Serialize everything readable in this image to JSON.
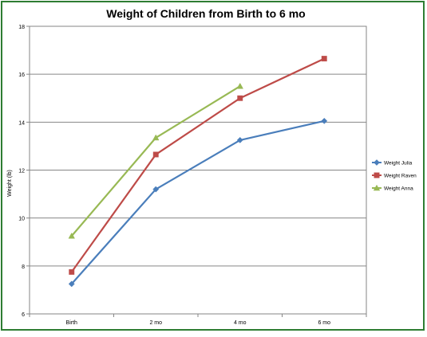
{
  "chart_data": {
    "type": "line",
    "title": "Weight of Children from Birth to 6 mo",
    "xlabel": "",
    "ylabel": "Weight  (lb)",
    "categories": [
      "Birth",
      "2 mo",
      "4 mo",
      "6 mo"
    ],
    "ylim": [
      6,
      18
    ],
    "yticks": [
      6,
      8,
      10,
      12,
      14,
      16,
      18
    ],
    "grid": true,
    "legend_position": "right",
    "series": [
      {
        "name": "Weight Julia",
        "color": "#4a7ebb",
        "marker": "diamond",
        "values": [
          7.25,
          11.2,
          13.25,
          14.05
        ]
      },
      {
        "name": "Weight Raven",
        "color": "#be4b48",
        "marker": "square",
        "values": [
          7.75,
          12.65,
          15.0,
          16.65
        ]
      },
      {
        "name": "Weight Anna",
        "color": "#98b954",
        "marker": "triangle",
        "values": [
          9.25,
          13.35,
          15.5,
          null
        ]
      }
    ]
  }
}
